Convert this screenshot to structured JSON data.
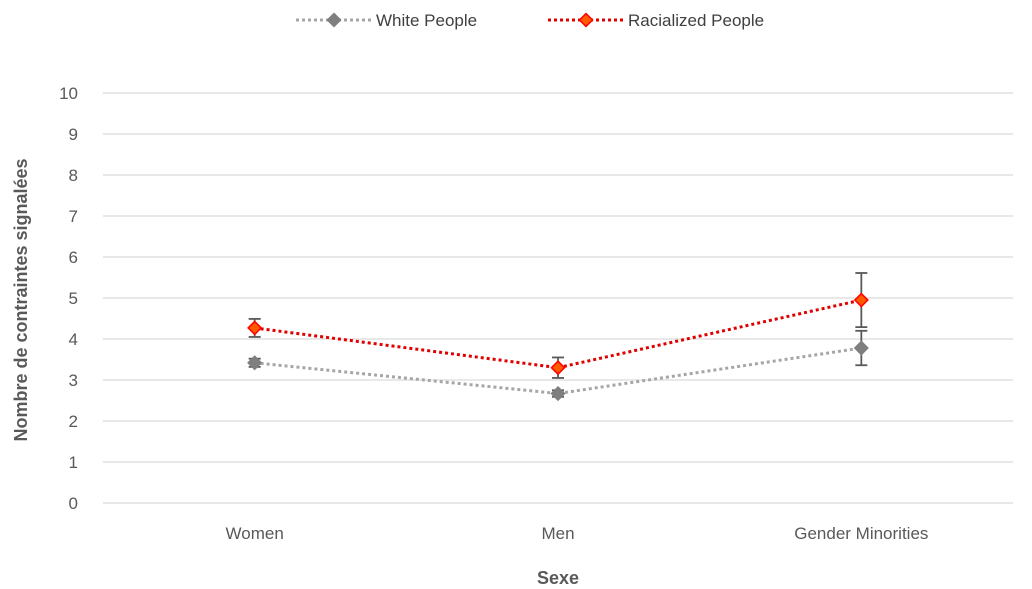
{
  "chart_data": {
    "type": "line",
    "title": "",
    "xlabel": "Sexe",
    "ylabel": "Nombre de contraintes signalées",
    "categories": [
      "Women",
      "Men",
      "Gender Minorities"
    ],
    "ylim": [
      0,
      10
    ],
    "yticks": [
      "0",
      "1",
      "2",
      "3",
      "4",
      "5",
      "6",
      "7",
      "8",
      "9",
      "10"
    ],
    "grid": true,
    "legend_position": "top",
    "series": [
      {
        "name": "White People",
        "values": [
          3.42,
          2.67,
          3.78
        ],
        "errors": [
          0.1,
          0.08,
          0.42
        ],
        "line_color": "#a6a6a6",
        "marker_color": "#7f7f7f",
        "marker_stroke": "#7f7f7f"
      },
      {
        "name": "Racialized People",
        "values": [
          4.27,
          3.3,
          4.95
        ],
        "errors": [
          0.22,
          0.25,
          0.66
        ],
        "line_color": "#e00000",
        "marker_color": "#ff5a00",
        "marker_stroke": "#ff0000"
      }
    ],
    "error_bar_color": "#595959",
    "grid_color": "#d9d9d9"
  }
}
